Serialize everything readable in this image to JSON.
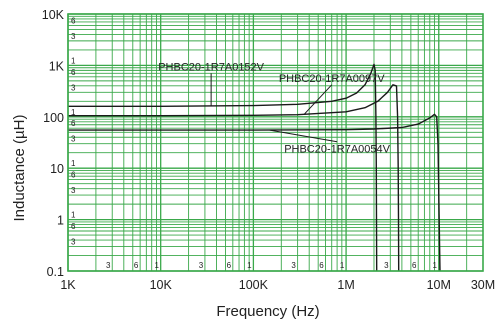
{
  "chart_data": {
    "type": "line",
    "title": "",
    "xlabel": "Frequency (Hz)",
    "ylabel": "Inductance (µH)",
    "x_scale": "log",
    "y_scale": "log",
    "xlim": [
      1000,
      30000000
    ],
    "ylim": [
      0.1,
      10000
    ],
    "grid": true,
    "colors": {
      "grid": "#3aa84a",
      "line": "#1a1a1a",
      "background": "#ffffff"
    },
    "x_tick_labels": [
      {
        "x": 1000,
        "label": "1K"
      },
      {
        "x": 10000,
        "label": "10K"
      },
      {
        "x": 100000,
        "label": "100K"
      },
      {
        "x": 1000000,
        "label": "1M"
      },
      {
        "x": 10000000,
        "label": "10M"
      },
      {
        "x": 30000000,
        "label": "30M"
      }
    ],
    "x_minor_labels": [
      {
        "x": 3000,
        "label": "3"
      },
      {
        "x": 6000,
        "label": "6"
      },
      {
        "x": 10000,
        "label": "1"
      },
      {
        "x": 30000,
        "label": "3"
      },
      {
        "x": 60000,
        "label": "6"
      },
      {
        "x": 100000,
        "label": "1"
      },
      {
        "x": 300000,
        "label": "3"
      },
      {
        "x": 600000,
        "label": "6"
      },
      {
        "x": 1000000,
        "label": "1"
      },
      {
        "x": 3000000,
        "label": "3"
      },
      {
        "x": 6000000,
        "label": "6"
      },
      {
        "x": 10000000,
        "label": "1"
      }
    ],
    "y_tick_labels": [
      {
        "y": 0.1,
        "label": "0.1"
      },
      {
        "y": 1,
        "label": "1"
      },
      {
        "y": 10,
        "label": "10"
      },
      {
        "y": 100,
        "label": "100"
      },
      {
        "y": 1000,
        "label": "1K"
      },
      {
        "y": 10000,
        "label": "10K"
      }
    ],
    "y_minor_labels": [
      {
        "y": 0.3,
        "label": "3"
      },
      {
        "y": 0.6,
        "label": "6"
      },
      {
        "y": 1,
        "label": "1"
      },
      {
        "y": 3,
        "label": "3"
      },
      {
        "y": 6,
        "label": "6"
      },
      {
        "y": 10,
        "label": "1"
      },
      {
        "y": 30,
        "label": "3"
      },
      {
        "y": 60,
        "label": "6"
      },
      {
        "y": 100,
        "label": "1"
      },
      {
        "y": 300,
        "label": "3"
      },
      {
        "y": 600,
        "label": "6"
      },
      {
        "y": 1000,
        "label": "1"
      },
      {
        "y": 3000,
        "label": "3"
      },
      {
        "y": 6000,
        "label": "6"
      }
    ],
    "series": [
      {
        "name": "PHBC20-1R7A0152V",
        "x": [
          1000,
          10000,
          100000,
          300000,
          700000,
          1000000,
          1300000,
          1600000,
          1850000,
          2000000,
          2060000,
          2100000,
          2120000,
          2130000,
          2140000
        ],
        "y": [
          160,
          160,
          165,
          175,
          200,
          230,
          290,
          420,
          700,
          1050,
          800,
          100,
          10,
          1,
          0.1
        ]
      },
      {
        "name": "PHBC20-1R7A0097V",
        "x": [
          1000,
          10000,
          100000,
          300000,
          1000000,
          1600000,
          2200000,
          2800000,
          3200000,
          3500000,
          3600000,
          3650000,
          3680000,
          3700000
        ],
        "y": [
          105,
          105,
          107,
          110,
          125,
          150,
          200,
          300,
          420,
          400,
          100,
          10,
          1,
          0.1
        ]
      },
      {
        "name": "PHBC20-1R7A0054V",
        "x": [
          1000,
          10000,
          100000,
          1000000,
          2000000,
          4000000,
          6000000,
          8000000,
          9000000,
          9500000,
          9800000,
          10000000,
          10200000,
          10300000
        ],
        "y": [
          55,
          55,
          55,
          56,
          58,
          62,
          72,
          95,
          112,
          100,
          30,
          3,
          0.3,
          0.1
        ]
      }
    ],
    "annotations": [
      {
        "text": "PHBC20-1R7A0152V",
        "series": 0,
        "label_x": 35000,
        "label_y": 800,
        "point_x": 35000,
        "point_y": 160
      },
      {
        "text": "PHBC20-1R7A0097V",
        "series": 1,
        "label_x": 700000,
        "label_y": 480,
        "point_x": 350000,
        "point_y": 110
      },
      {
        "text": "PHBC20-1R7A0054V",
        "series": 2,
        "label_x": 800000,
        "label_y": 20,
        "point_x": 150000,
        "point_y": 55
      }
    ]
  }
}
